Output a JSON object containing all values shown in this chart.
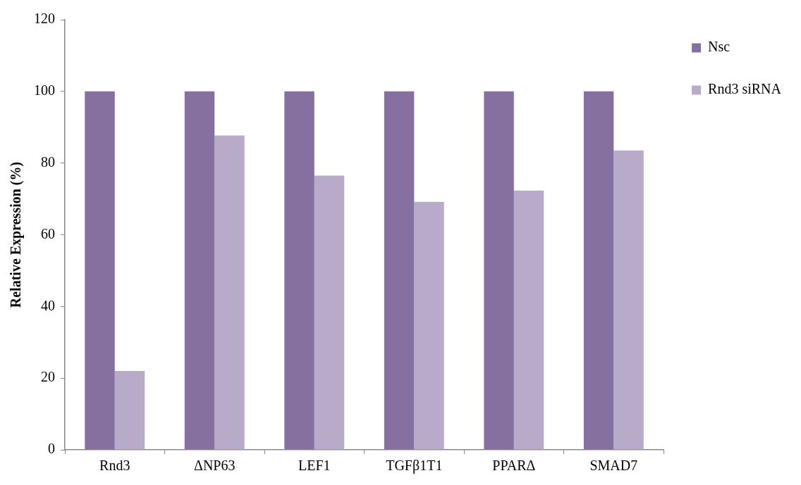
{
  "chart_data": {
    "type": "bar",
    "ylabel": "Relative Expression (%)",
    "categories": [
      "Rnd3",
      "ΔNP63",
      "LEF1",
      "TGFβ1T1",
      "PPARΔ",
      "SMAD7"
    ],
    "series": [
      {
        "name": "Nsc",
        "color": "#8570a0",
        "values": [
          100,
          100,
          100,
          100,
          100,
          100
        ]
      },
      {
        "name": "Rnd3 siRNA",
        "color": "#b8aac9",
        "values": [
          22,
          87.7,
          76.5,
          69.2,
          72.3,
          83.5
        ]
      }
    ],
    "ylim": [
      0,
      120
    ],
    "yticks": [
      0,
      20,
      40,
      60,
      80,
      100,
      120
    ],
    "grid": false,
    "legend": "top right"
  }
}
